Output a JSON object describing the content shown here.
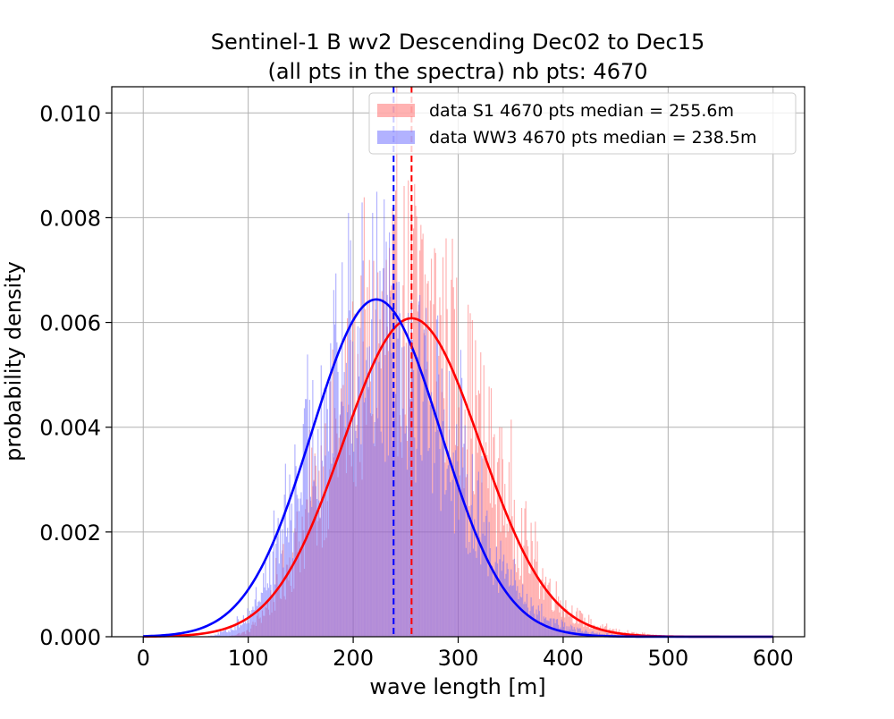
{
  "chart_data": {
    "type": "histogram",
    "title_lines": [
      "Sentinel-1 B wv2 Descending Dec02 to Dec15",
      "(all pts in the spectra) nb pts: 4670"
    ],
    "xlabel": "wave length [m]",
    "ylabel": "probability density",
    "xlim": [
      -30,
      630
    ],
    "ylim": [
      0,
      0.0105
    ],
    "xticks": [
      0,
      100,
      200,
      300,
      400,
      500,
      600
    ],
    "xtick_labels": [
      "0",
      "100",
      "200",
      "300",
      "400",
      "500",
      "600"
    ],
    "yticks": [
      0,
      0.002,
      0.004,
      0.006,
      0.008,
      0.01
    ],
    "ytick_labels": [
      "0.000",
      "0.002",
      "0.004",
      "0.006",
      "0.008",
      "0.010"
    ],
    "grid": true,
    "legend_position": "upper right",
    "hist_bin_width": 1,
    "series": [
      {
        "name": "data S1 4670 pts median = 255.6m",
        "kind": "histogram",
        "color": "#ff6666",
        "alpha": 0.5,
        "median": 255.6,
        "fit": {
          "type": "gaussian",
          "mean": 255.6,
          "sigma": 65.5,
          "peak": 0.00608
        },
        "envelope": [
          [
            80,
            0
          ],
          [
            100,
            0.0001
          ],
          [
            120,
            0.0006
          ],
          [
            140,
            0.0014
          ],
          [
            160,
            0.0025
          ],
          [
            180,
            0.0036
          ],
          [
            200,
            0.0046
          ],
          [
            220,
            0.0055
          ],
          [
            240,
            0.0061
          ],
          [
            260,
            0.0063
          ],
          [
            280,
            0.0058
          ],
          [
            300,
            0.005
          ],
          [
            320,
            0.004
          ],
          [
            340,
            0.0029
          ],
          [
            360,
            0.0019
          ],
          [
            380,
            0.0011
          ],
          [
            400,
            0.0006
          ],
          [
            420,
            0.0003
          ],
          [
            440,
            0.00015
          ],
          [
            460,
            8e-05
          ],
          [
            480,
            4e-05
          ],
          [
            500,
            2e-05
          ],
          [
            550,
            0
          ]
        ]
      },
      {
        "name": "data WW3 4670 pts median = 238.5m",
        "kind": "histogram",
        "color": "#6666ff",
        "alpha": 0.5,
        "median": 238.5,
        "fit": {
          "type": "gaussian",
          "mean": 222,
          "sigma": 61.5,
          "peak": 0.00644
        },
        "envelope": [
          [
            60,
            0
          ],
          [
            80,
            0.0001
          ],
          [
            100,
            0.0004
          ],
          [
            120,
            0.0012
          ],
          [
            140,
            0.0024
          ],
          [
            160,
            0.0036
          ],
          [
            180,
            0.0047
          ],
          [
            200,
            0.0057
          ],
          [
            220,
            0.0061
          ],
          [
            240,
            0.006
          ],
          [
            260,
            0.0053
          ],
          [
            280,
            0.0044
          ],
          [
            300,
            0.0033
          ],
          [
            320,
            0.0023
          ],
          [
            340,
            0.0014
          ],
          [
            360,
            0.0008
          ],
          [
            380,
            0.0004
          ],
          [
            400,
            0.0002
          ],
          [
            420,
            0.0001
          ],
          [
            440,
            5e-05
          ],
          [
            480,
            0
          ]
        ]
      }
    ],
    "lines": [
      {
        "name": "fit S1",
        "kind": "fit",
        "color": "#ff0000"
      },
      {
        "name": "fit WW3",
        "kind": "fit",
        "color": "#0000ff"
      }
    ],
    "vlines": [
      {
        "x": 238.5,
        "color": "#0000ff",
        "style": "dashed"
      },
      {
        "x": 255.6,
        "color": "#ff0000",
        "style": "dashed"
      }
    ]
  }
}
